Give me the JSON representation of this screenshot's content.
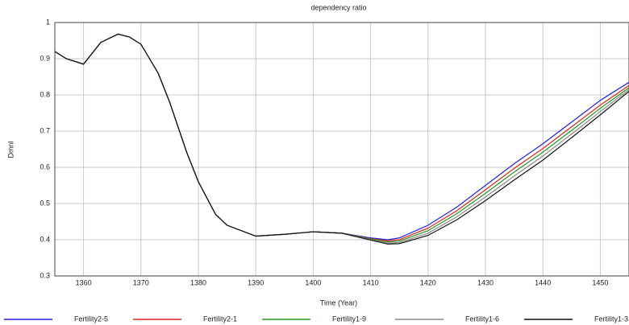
{
  "chart_data": {
    "type": "line",
    "title": "dependency ratio",
    "x_label": "Time (Year)",
    "y_label": "Dmnl",
    "x": [
      1355,
      1357,
      1360,
      1363,
      1366,
      1368,
      1370,
      1373,
      1375,
      1378,
      1380,
      1383,
      1385,
      1390,
      1395,
      1400,
      1405,
      1410,
      1413,
      1415,
      1420,
      1425,
      1430,
      1435,
      1440,
      1445,
      1450,
      1455
    ],
    "series": [
      {
        "name": "Fertility2-5",
        "color": "#2222dd",
        "values": [
          0.92,
          0.9,
          0.885,
          0.945,
          0.968,
          0.96,
          0.94,
          0.86,
          0.78,
          0.64,
          0.56,
          0.47,
          0.44,
          0.41,
          0.415,
          0.422,
          0.418,
          0.405,
          0.4,
          0.405,
          0.44,
          0.49,
          0.55,
          0.61,
          0.665,
          0.725,
          0.785,
          0.835
        ]
      },
      {
        "name": "Fertility2-1",
        "color": "#dd2222",
        "values": [
          0.92,
          0.9,
          0.885,
          0.945,
          0.968,
          0.96,
          0.94,
          0.86,
          0.78,
          0.64,
          0.56,
          0.47,
          0.44,
          0.41,
          0.415,
          0.422,
          0.418,
          0.403,
          0.397,
          0.4,
          0.432,
          0.48,
          0.538,
          0.597,
          0.652,
          0.712,
          0.772,
          0.826
        ]
      },
      {
        "name": "Fertility1-9",
        "color": "#229922",
        "values": [
          0.92,
          0.9,
          0.885,
          0.945,
          0.968,
          0.96,
          0.94,
          0.86,
          0.78,
          0.64,
          0.56,
          0.47,
          0.44,
          0.41,
          0.415,
          0.422,
          0.418,
          0.402,
          0.394,
          0.396,
          0.425,
          0.472,
          0.528,
          0.587,
          0.642,
          0.702,
          0.763,
          0.82
        ]
      },
      {
        "name": "Fertility1-6",
        "color": "#888888",
        "values": [
          0.92,
          0.9,
          0.885,
          0.945,
          0.968,
          0.96,
          0.94,
          0.86,
          0.78,
          0.64,
          0.56,
          0.47,
          0.44,
          0.41,
          0.415,
          0.422,
          0.418,
          0.4,
          0.391,
          0.392,
          0.418,
          0.463,
          0.518,
          0.576,
          0.631,
          0.692,
          0.754,
          0.815
        ]
      },
      {
        "name": "Fertility1-3",
        "color": "#111111",
        "values": [
          0.92,
          0.9,
          0.885,
          0.945,
          0.968,
          0.96,
          0.94,
          0.86,
          0.78,
          0.64,
          0.56,
          0.47,
          0.44,
          0.41,
          0.415,
          0.422,
          0.418,
          0.399,
          0.388,
          0.389,
          0.412,
          0.455,
          0.508,
          0.565,
          0.62,
          0.682,
          0.745,
          0.81
        ]
      }
    ],
    "xlim": [
      1355,
      1455
    ],
    "xticks": [
      1360,
      1370,
      1380,
      1390,
      1400,
      1410,
      1420,
      1430,
      1440,
      1450
    ],
    "ylim": [
      0.3,
      1
    ],
    "yticks": [
      0.3,
      0.4,
      0.5,
      0.6,
      0.7,
      0.8,
      0.9,
      1
    ],
    "grid": true
  }
}
